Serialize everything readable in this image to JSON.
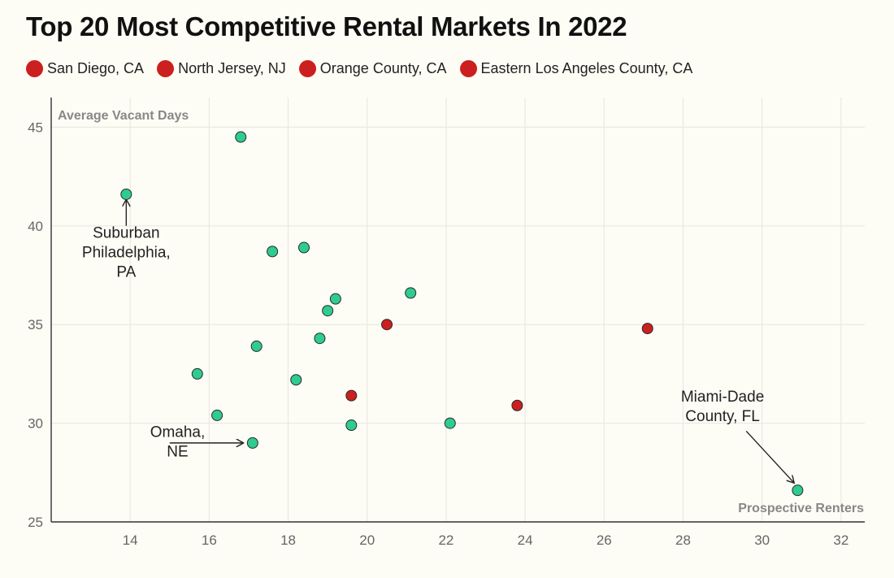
{
  "chart_data": {
    "type": "scatter",
    "title": "Top 20 Most Competitive Rental Markets In 2022",
    "xlabel": "Prospective Renters",
    "ylabel": "Average Vacant Days",
    "xlim": [
      12,
      32.6
    ],
    "ylim": [
      25,
      46.5
    ],
    "xticks": [
      14,
      16,
      18,
      20,
      22,
      24,
      26,
      28,
      30,
      32
    ],
    "yticks": [
      25,
      30,
      35,
      40,
      45
    ],
    "grid": true,
    "colors": {
      "highlight": "#cc1f1f",
      "default": "#2ecc8f",
      "grid": "#e8e6dc",
      "axis": "#333333"
    },
    "legend": [
      {
        "label": "San Diego, CA",
        "color": "#cc1f1f"
      },
      {
        "label": "North Jersey, NJ",
        "color": "#cc1f1f"
      },
      {
        "label": "Orange County, CA",
        "color": "#cc1f1f"
      },
      {
        "label": "Eastern Los Angeles County, CA",
        "color": "#cc1f1f"
      }
    ],
    "points": [
      {
        "x": 16.8,
        "y": 44.5,
        "group": "default"
      },
      {
        "x": 13.9,
        "y": 41.6,
        "group": "default"
      },
      {
        "x": 18.4,
        "y": 38.9,
        "group": "default"
      },
      {
        "x": 17.6,
        "y": 38.7,
        "group": "default"
      },
      {
        "x": 21.1,
        "y": 36.6,
        "group": "default"
      },
      {
        "x": 19.2,
        "y": 36.3,
        "group": "default"
      },
      {
        "x": 19.0,
        "y": 35.7,
        "group": "default"
      },
      {
        "x": 18.8,
        "y": 34.3,
        "group": "default"
      },
      {
        "x": 17.2,
        "y": 33.9,
        "group": "default"
      },
      {
        "x": 15.7,
        "y": 32.5,
        "group": "default"
      },
      {
        "x": 18.2,
        "y": 32.2,
        "group": "default"
      },
      {
        "x": 16.2,
        "y": 30.4,
        "group": "default"
      },
      {
        "x": 19.6,
        "y": 29.9,
        "group": "default"
      },
      {
        "x": 22.1,
        "y": 30.0,
        "group": "default"
      },
      {
        "x": 17.1,
        "y": 29.0,
        "group": "default"
      },
      {
        "x": 30.9,
        "y": 26.6,
        "group": "default"
      },
      {
        "x": 20.5,
        "y": 35.0,
        "group": "highlight"
      },
      {
        "x": 27.1,
        "y": 34.8,
        "group": "highlight"
      },
      {
        "x": 19.6,
        "y": 31.4,
        "group": "highlight"
      },
      {
        "x": 23.8,
        "y": 30.9,
        "group": "highlight"
      }
    ],
    "annotations": [
      {
        "lines": [
          "Suburban",
          "Philadelphia,",
          "PA"
        ],
        "text_x": 13.9,
        "text_y": 39.4,
        "arrow_from": [
          13.9,
          40.0
        ],
        "arrow_to": [
          13.9,
          41.3
        ]
      },
      {
        "lines": [
          "Omaha,",
          "NE"
        ],
        "text_x": 15.2,
        "text_y": 29.3,
        "arrow_from": [
          15.0,
          29.0
        ],
        "arrow_to": [
          16.85,
          29.0
        ]
      },
      {
        "lines": [
          "Miami-Dade",
          "County, FL"
        ],
        "text_x": 29.0,
        "text_y": 31.1,
        "arrow_from": [
          29.6,
          29.6
        ],
        "arrow_to": [
          30.8,
          27.0
        ]
      }
    ]
  }
}
